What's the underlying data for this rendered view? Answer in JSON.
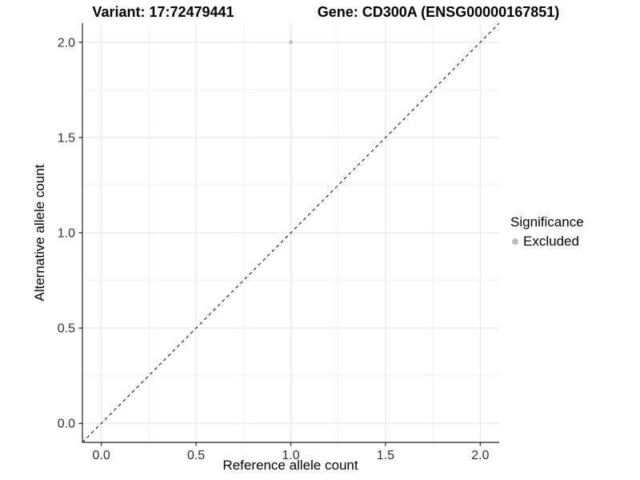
{
  "chart_data": {
    "type": "scatter",
    "title_left": "Variant: 17:72479441",
    "title_right": "Gene: CD300A (ENSG00000167851)",
    "xlabel": "Reference allele count",
    "ylabel": "Alternative allele count",
    "xlim": [
      -0.1,
      2.1
    ],
    "ylim": [
      -0.1,
      2.1
    ],
    "x_ticks": [
      "0.0",
      "0.5",
      "1.0",
      "1.5",
      "2.0"
    ],
    "y_ticks": [
      "0.0",
      "0.5",
      "1.0",
      "1.5",
      "2.0"
    ],
    "x_tick_values": [
      0.0,
      0.5,
      1.0,
      1.5,
      2.0
    ],
    "y_tick_values": [
      0.0,
      0.5,
      1.0,
      1.5,
      2.0
    ],
    "x_minor_ticks": [
      0.25,
      0.75,
      1.25,
      1.75
    ],
    "y_minor_ticks": [
      0.25,
      0.75,
      1.25,
      1.75
    ],
    "grid": true,
    "series": [
      {
        "name": "Excluded",
        "color": "#bdbdbd",
        "marker": "circle",
        "points": [
          {
            "x": 1.0,
            "y": 2.0
          }
        ]
      }
    ],
    "reference_line": {
      "type": "identity",
      "slope": 1,
      "intercept": 0,
      "style": "dashed",
      "color": "#000000"
    },
    "legend": {
      "position": "right",
      "title": "Significance",
      "entries": [
        {
          "label": "Excluded",
          "color": "#bdbdbd",
          "marker": "circle"
        }
      ]
    }
  },
  "colors": {
    "background": "#ffffff",
    "grid_major": "#e3e3e3",
    "grid_minor": "#f1f1f1",
    "axis_line": "#1f1f1f",
    "tick_label": "#303030",
    "point": "#bdbdbd",
    "dashed_line": "#000000"
  }
}
